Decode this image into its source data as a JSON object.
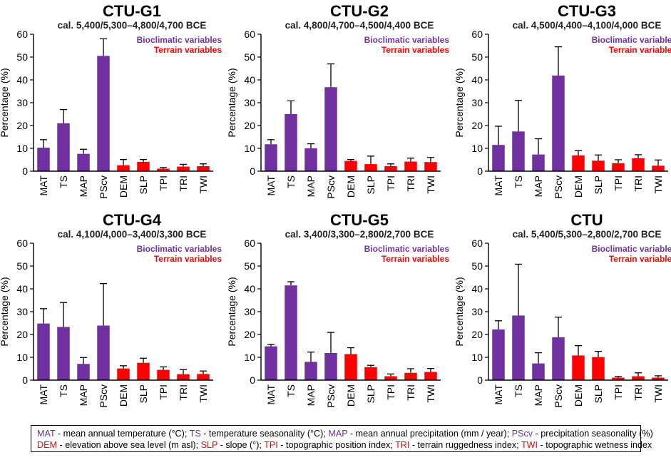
{
  "colors": {
    "bioclimatic": "#7030A0",
    "terrain": "#FF0000",
    "axis": "#000000"
  },
  "legend": {
    "bioclimatic": "Bioclimatic variables",
    "terrain": "Terrain variables"
  },
  "chart_data": [
    {
      "type": "bar",
      "title": "CTU-G1",
      "subtitle": "cal. 5,400/5,300–4,800/4,700 BCE",
      "ylabel": "Percentage (%)",
      "ylim": [
        0,
        60
      ],
      "yticks": [
        0,
        10,
        20,
        30,
        40,
        50,
        60
      ],
      "categories": [
        "MAT",
        "TS",
        "MAP",
        "PScv",
        "DEM",
        "SLP",
        "TPI",
        "TRI",
        "TWI"
      ],
      "groups": [
        "bioclimatic",
        "bioclimatic",
        "bioclimatic",
        "bioclimatic",
        "terrain",
        "terrain",
        "terrain",
        "terrain",
        "terrain"
      ],
      "values": [
        10.3,
        21.0,
        7.6,
        50.5,
        2.6,
        4.1,
        1.1,
        2.0,
        2.2
      ],
      "errors": [
        3.5,
        6.0,
        2.0,
        7.5,
        2.5,
        1.0,
        0.5,
        1.0,
        1.0
      ]
    },
    {
      "type": "bar",
      "title": "CTU-G2",
      "subtitle": "cal. 4,800/4,700–4,500/4,400 BCE",
      "ylabel": "Percentage (%)",
      "ylim": [
        0,
        60
      ],
      "yticks": [
        0,
        10,
        20,
        30,
        40,
        50,
        60
      ],
      "categories": [
        "MAT",
        "TS",
        "MAP",
        "PScv",
        "DEM",
        "SLP",
        "TPI",
        "TRI",
        "TWI"
      ],
      "groups": [
        "bioclimatic",
        "bioclimatic",
        "bioclimatic",
        "bioclimatic",
        "terrain",
        "terrain",
        "terrain",
        "terrain",
        "terrain"
      ],
      "values": [
        11.8,
        25.0,
        10.0,
        36.8,
        4.5,
        3.1,
        2.2,
        4.2,
        4.0
      ],
      "errors": [
        2.0,
        5.8,
        2.0,
        10.2,
        0.6,
        3.5,
        1.0,
        1.5,
        2.0
      ]
    },
    {
      "type": "bar",
      "title": "CTU-G3",
      "subtitle": "cal. 4,500/4,400–4,100/4,000 BCE",
      "ylabel": "Percentage (%)",
      "ylim": [
        0,
        60
      ],
      "yticks": [
        0,
        10,
        20,
        30,
        40,
        50,
        60
      ],
      "categories": [
        "MAT",
        "TS",
        "MAP",
        "PScv",
        "DEM",
        "SLP",
        "TPI",
        "TRI",
        "TWI"
      ],
      "groups": [
        "bioclimatic",
        "bioclimatic",
        "bioclimatic",
        "bioclimatic",
        "terrain",
        "terrain",
        "terrain",
        "terrain",
        "terrain"
      ],
      "values": [
        11.5,
        17.4,
        7.3,
        41.9,
        6.9,
        4.6,
        3.5,
        5.7,
        2.4
      ],
      "errors": [
        8.2,
        13.6,
        6.9,
        12.6,
        2.1,
        2.5,
        1.5,
        1.5,
        2.5
      ]
    },
    {
      "type": "bar",
      "title": "CTU-G4",
      "subtitle": "cal. 4,100/4,000–3,400/3,300 BCE",
      "ylabel": "Percentage (%)",
      "ylim": [
        0,
        60
      ],
      "yticks": [
        0,
        10,
        20,
        30,
        40,
        50,
        60
      ],
      "categories": [
        "MAT",
        "TS",
        "MAP",
        "PScv",
        "DEM",
        "SLP",
        "TPI",
        "TRI",
        "TWI"
      ],
      "groups": [
        "bioclimatic",
        "bioclimatic",
        "bioclimatic",
        "bioclimatic",
        "terrain",
        "terrain",
        "terrain",
        "terrain",
        "terrain"
      ],
      "values": [
        24.8,
        23.3,
        7.1,
        23.9,
        5.1,
        7.6,
        4.5,
        2.6,
        2.7
      ],
      "errors": [
        6.5,
        10.7,
        2.8,
        18.4,
        1.2,
        2.0,
        1.3,
        2.0,
        1.3
      ]
    },
    {
      "type": "bar",
      "title": "CTU-G5",
      "subtitle": "cal. 3,400/3,300–2,800/2,700 BCE",
      "ylabel": "Percentage (%)",
      "ylim": [
        0,
        60
      ],
      "yticks": [
        0,
        10,
        20,
        30,
        40,
        50,
        60
      ],
      "categories": [
        "MAT",
        "TS",
        "MAP",
        "PScv",
        "DEM",
        "SLP",
        "TPI",
        "TRI",
        "TWI"
      ],
      "groups": [
        "bioclimatic",
        "bioclimatic",
        "bioclimatic",
        "bioclimatic",
        "terrain",
        "terrain",
        "terrain",
        "terrain",
        "terrain"
      ],
      "values": [
        14.8,
        41.5,
        8.0,
        11.9,
        11.4,
        5.7,
        1.7,
        3.2,
        3.6
      ],
      "errors": [
        0.8,
        1.6,
        4.3,
        9.0,
        2.8,
        0.8,
        1.0,
        1.8,
        1.5
      ]
    },
    {
      "type": "bar",
      "title": "CTU",
      "subtitle": "cal. 5,400/5,300–2,800/2,700 BCE",
      "ylabel": "Percentage (%)",
      "ylim": [
        0,
        60
      ],
      "yticks": [
        0,
        10,
        20,
        30,
        40,
        50,
        60
      ],
      "categories": [
        "MAT",
        "TS",
        "MAP",
        "PScv",
        "DEM",
        "SLP",
        "TPI",
        "TRI",
        "TWI"
      ],
      "groups": [
        "bioclimatic",
        "bioclimatic",
        "bioclimatic",
        "bioclimatic",
        "terrain",
        "terrain",
        "terrain",
        "terrain",
        "terrain"
      ],
      "values": [
        22.2,
        28.3,
        7.3,
        18.8,
        10.8,
        10.1,
        1.1,
        1.7,
        1.1
      ],
      "errors": [
        3.8,
        22.5,
        4.7,
        8.8,
        4.3,
        2.5,
        0.5,
        1.5,
        0.8
      ]
    }
  ],
  "footer_legend": {
    "line1": [
      {
        "abbr": "MAT",
        "color": "bio",
        "desc": " - mean annual temperature (°C); "
      },
      {
        "abbr": "TS",
        "color": "bio",
        "desc": " - temperature seasonality (°C); "
      },
      {
        "abbr": "MAP",
        "color": "bio",
        "desc": " - mean annual precipitation (mm / year); "
      },
      {
        "abbr": "PScv",
        "color": "bio",
        "desc": " - precipitation seasonality (%)"
      }
    ],
    "line2": [
      {
        "abbr": "DEM",
        "color": "ter",
        "desc": " - elevation above sea level (m asl); "
      },
      {
        "abbr": "SLP",
        "color": "ter",
        "desc": " - slope (°); "
      },
      {
        "abbr": "TPI",
        "color": "ter",
        "desc": " - topographic position index; "
      },
      {
        "abbr": "TRI",
        "color": "ter",
        "desc": " - terrain ruggedness index; "
      },
      {
        "abbr": "TWI",
        "color": "ter",
        "desc": " - topographic wetness index"
      }
    ]
  }
}
